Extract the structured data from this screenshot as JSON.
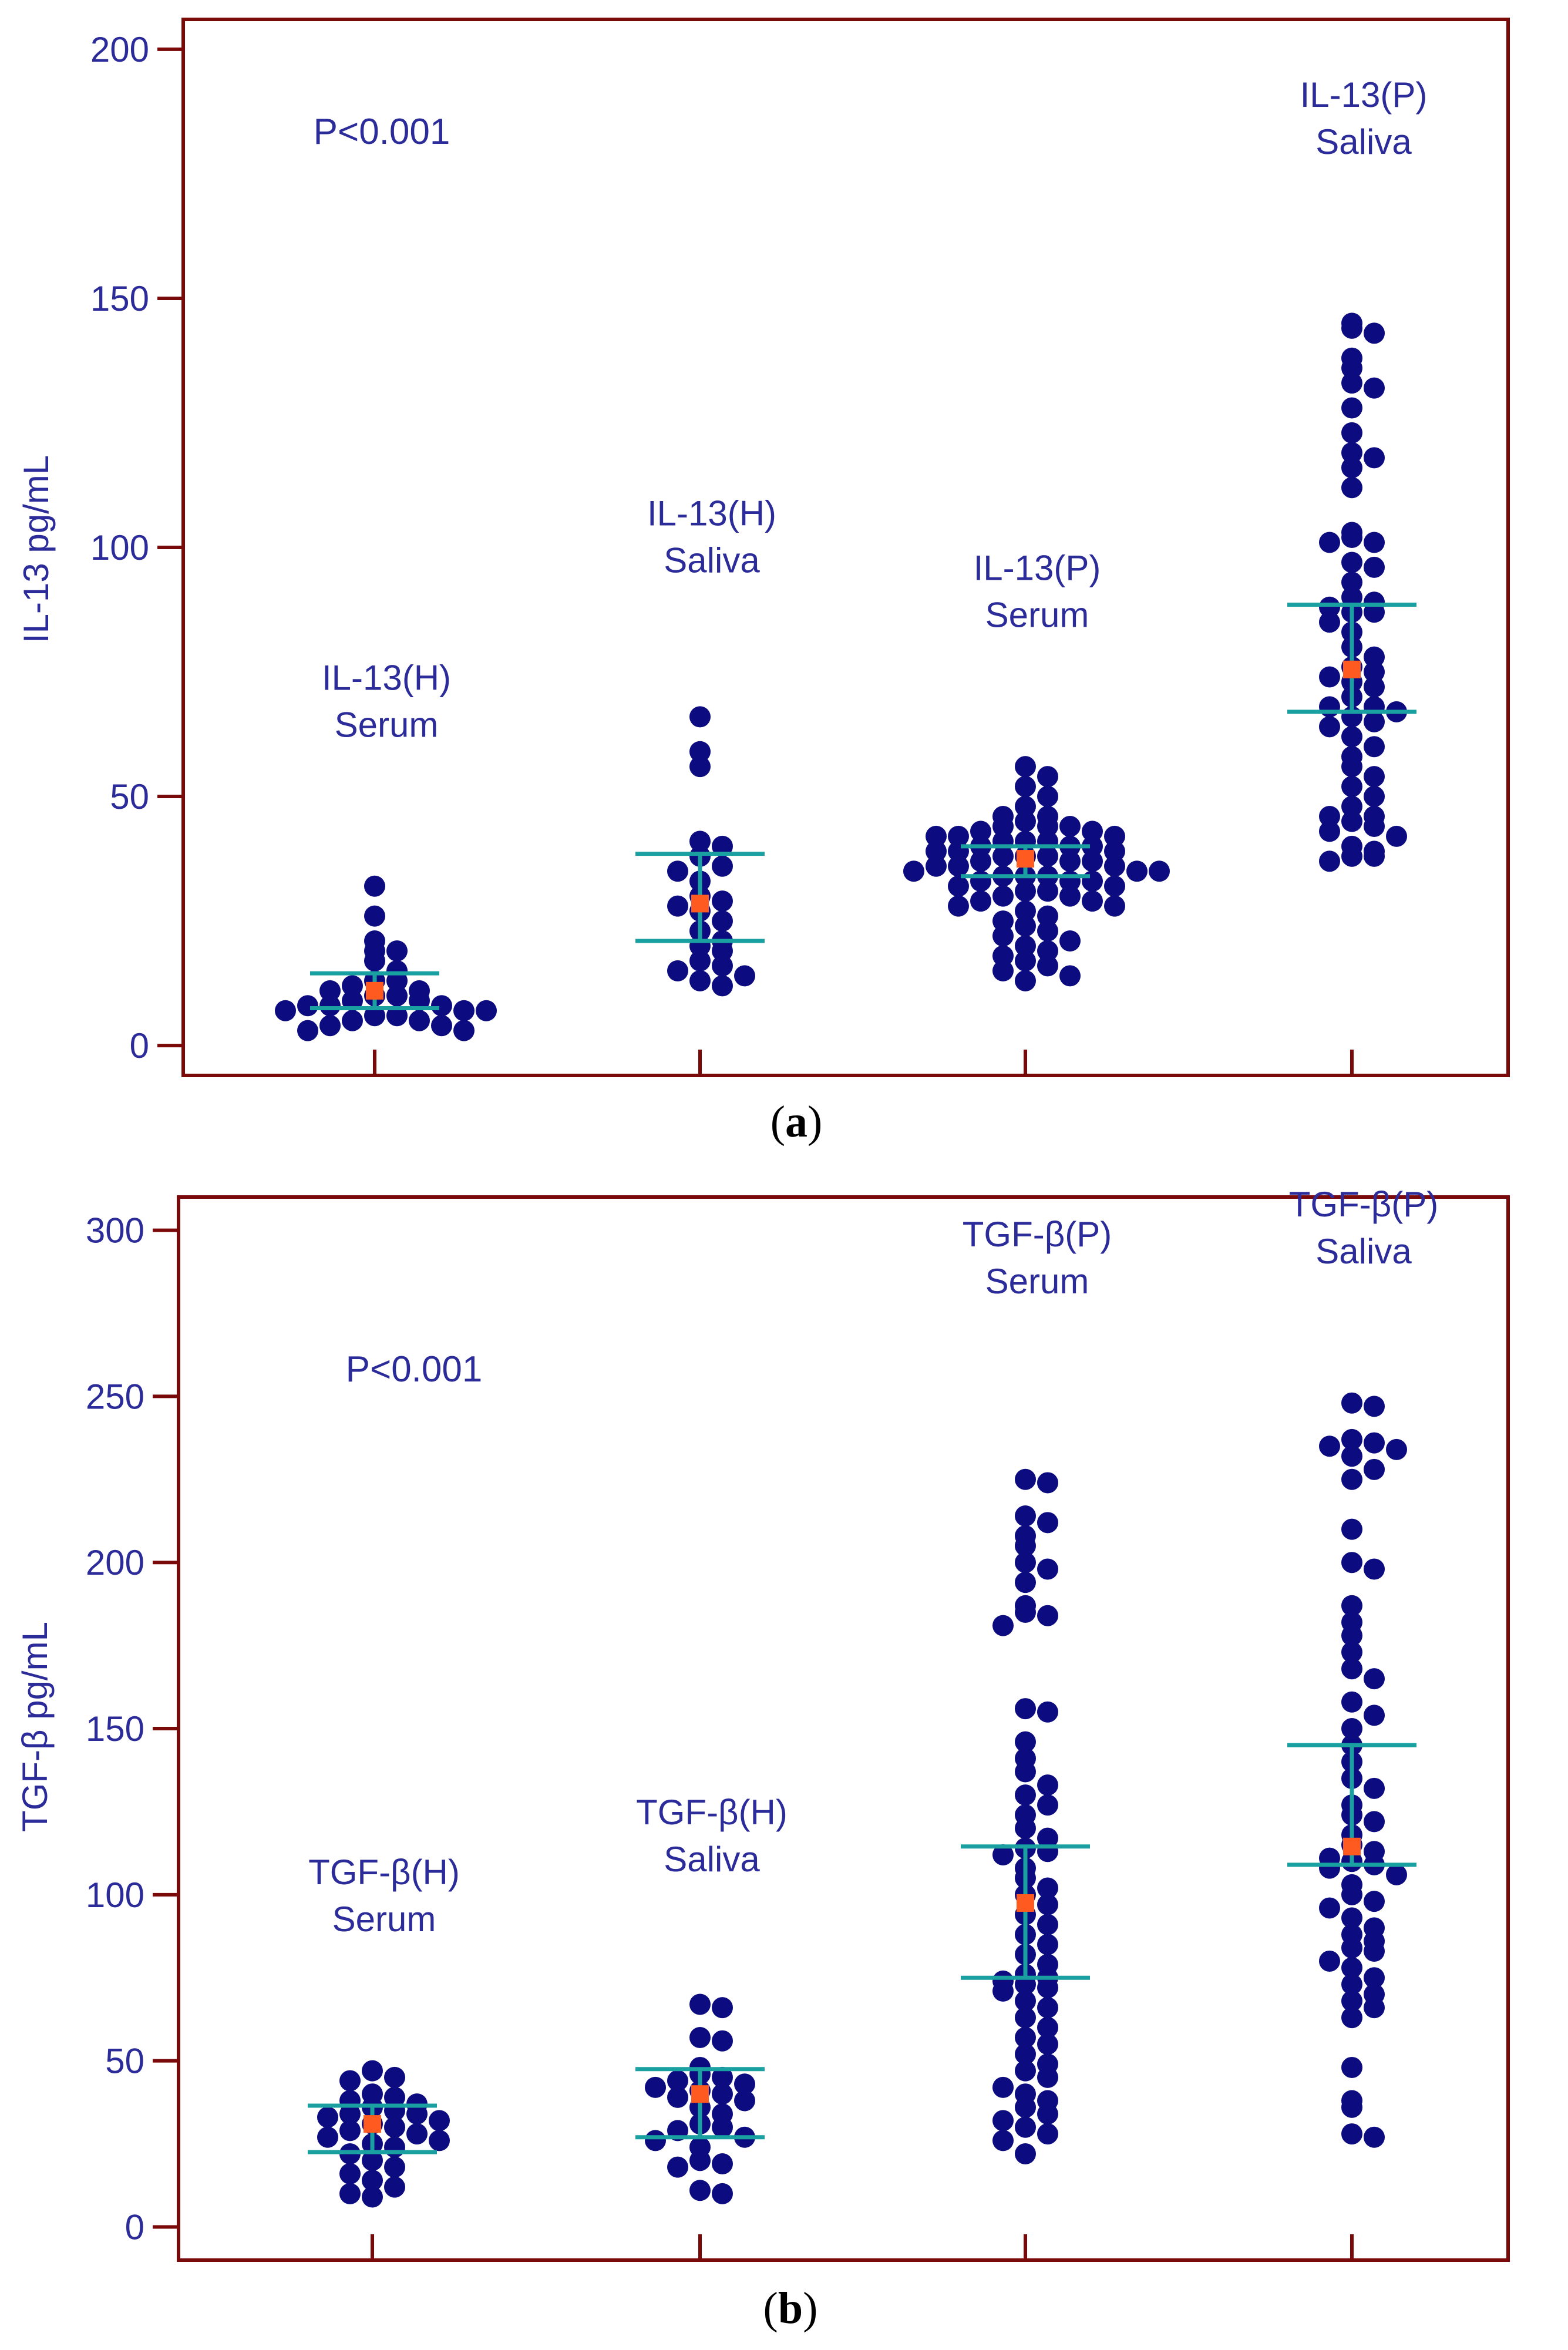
{
  "colors": {
    "frame": "#7a0a0a",
    "text": "#2b2b9a",
    "dot": "#0c0c80",
    "bar": "#1aa0a0",
    "mean": "#ff5a1f"
  },
  "chart_data": [
    {
      "type": "scatter",
      "subtype": "dot-plot",
      "panel_label": "a",
      "caption_open": "(",
      "caption_close": ")",
      "ylabel": "IL-13 pg/mL",
      "ylim": [
        -6,
        206
      ],
      "yticks": [
        0,
        50,
        100,
        150,
        200
      ],
      "annotation": "P<0.001",
      "groups": [
        {
          "label_line1": "IL-13(H)",
          "label_line2": "Serum",
          "label_y": 62,
          "mean": 11,
          "upper": 14.5,
          "lower": 7.5,
          "points": [
            32,
            26,
            21,
            19,
            19,
            17,
            15,
            13,
            13,
            12,
            11,
            11,
            10,
            10,
            9,
            9,
            8,
            8,
            8,
            7,
            7,
            7,
            6,
            6,
            5,
            5,
            4,
            4,
            3,
            3
          ]
        },
        {
          "label_line1": "IL-13(H)",
          "label_line2": "Saliva",
          "label_y": 95,
          "mean": 28.5,
          "upper": 38.5,
          "lower": 21,
          "points": [
            66,
            59,
            56,
            41,
            40,
            38,
            36,
            35,
            33,
            30,
            29,
            28,
            27,
            25,
            23,
            21,
            20,
            19,
            17,
            16,
            15,
            14,
            13,
            12
          ]
        },
        {
          "label_line1": "IL-13(P)",
          "label_line2": "Serum",
          "label_y": 84,
          "mean": 37.5,
          "upper": 40,
          "lower": 34,
          "points": [
            56,
            54,
            52,
            50,
            48,
            46,
            46,
            45,
            44,
            44,
            44,
            43,
            43,
            42,
            42,
            42,
            41,
            41,
            41,
            40,
            40,
            40,
            39,
            39,
            39,
            38,
            38,
            38,
            37,
            37,
            37,
            36,
            36,
            36,
            35,
            35,
            35,
            34,
            34,
            34,
            33,
            33,
            33,
            32,
            32,
            31,
            31,
            30,
            30,
            29,
            29,
            28,
            28,
            27,
            26,
            25,
            24,
            23,
            22,
            21,
            20,
            19,
            18,
            17,
            16,
            15,
            14,
            13
          ]
        },
        {
          "label_line1": "IL-13(P)",
          "label_line2": "Saliva",
          "label_y": 179,
          "mean": 75.5,
          "upper": 88.5,
          "lower": 67,
          "points": [
            145,
            144,
            143,
            138,
            136,
            133,
            132,
            128,
            123,
            119,
            118,
            116,
            112,
            103,
            102,
            101,
            101,
            97,
            96,
            93,
            90,
            89,
            88,
            87,
            87,
            85,
            83,
            80,
            78,
            76,
            75,
            74,
            73,
            72,
            70,
            68,
            68,
            67,
            66,
            65,
            64,
            62,
            60,
            58,
            56,
            54,
            52,
            50,
            48,
            46,
            46,
            45,
            44,
            43,
            42,
            40,
            39,
            38,
            38,
            37
          ]
        }
      ]
    },
    {
      "type": "scatter",
      "subtype": "dot-plot",
      "panel_label": "b",
      "caption_open": "(",
      "caption_close": ")",
      "ylabel": "TGF-β pg/mL",
      "ylim": [
        -10,
        310
      ],
      "yticks": [
        0,
        50,
        100,
        150,
        200,
        250,
        300
      ],
      "annotation": "P<0.001",
      "groups": [
        {
          "label_line1": "TGF-β(H)",
          "label_line2": "Serum",
          "label_y": 89,
          "mean": 31,
          "upper": 36.5,
          "lower": 22.5,
          "points": [
            47,
            45,
            44,
            40,
            39,
            38,
            37,
            36,
            35,
            34,
            34,
            33,
            32,
            31,
            30,
            29,
            28,
            27,
            26,
            25,
            24,
            22,
            20,
            18,
            16,
            14,
            12,
            10,
            9
          ]
        },
        {
          "label_line1": "TGF-β(H)",
          "label_line2": "Saliva",
          "label_y": 107,
          "mean": 40,
          "upper": 47.5,
          "lower": 27,
          "points": [
            67,
            66,
            57,
            56,
            48,
            46,
            45,
            44,
            43,
            42,
            41,
            40,
            39,
            38,
            36,
            34,
            31,
            30,
            29,
            27,
            26,
            24,
            20,
            19,
            18,
            11,
            10
          ]
        },
        {
          "label_line1": "TGF-β(P)",
          "label_line2": "Serum",
          "label_y": 281,
          "mean": 97.5,
          "upper": 114.5,
          "lower": 75,
          "points": [
            225,
            224,
            214,
            212,
            208,
            205,
            200,
            198,
            194,
            187,
            185,
            184,
            181,
            156,
            155,
            146,
            141,
            137,
            133,
            130,
            127,
            124,
            120,
            117,
            114,
            113,
            112,
            108,
            105,
            102,
            100,
            97,
            94,
            91,
            88,
            85,
            82,
            79,
            76,
            75,
            74,
            73,
            72,
            71,
            68,
            66,
            63,
            60,
            57,
            55,
            52,
            49,
            47,
            45,
            42,
            40,
            38,
            36,
            34,
            32,
            30,
            28,
            26,
            22
          ]
        },
        {
          "label_line1": "TGF-β(P)",
          "label_line2": "Saliva",
          "label_y": 290,
          "mean": 114.5,
          "upper": 145,
          "lower": 109,
          "points": [
            248,
            247,
            237,
            236,
            235,
            234,
            232,
            228,
            225,
            210,
            200,
            198,
            187,
            182,
            178,
            173,
            168,
            165,
            158,
            154,
            150,
            145,
            140,
            135,
            132,
            127,
            124,
            122,
            118,
            115,
            113,
            111,
            110,
            109,
            108,
            106,
            103,
            100,
            98,
            96,
            93,
            90,
            88,
            86,
            84,
            83,
            80,
            78,
            75,
            73,
            70,
            68,
            66,
            63,
            48,
            38,
            36,
            28,
            27
          ]
        }
      ]
    }
  ]
}
